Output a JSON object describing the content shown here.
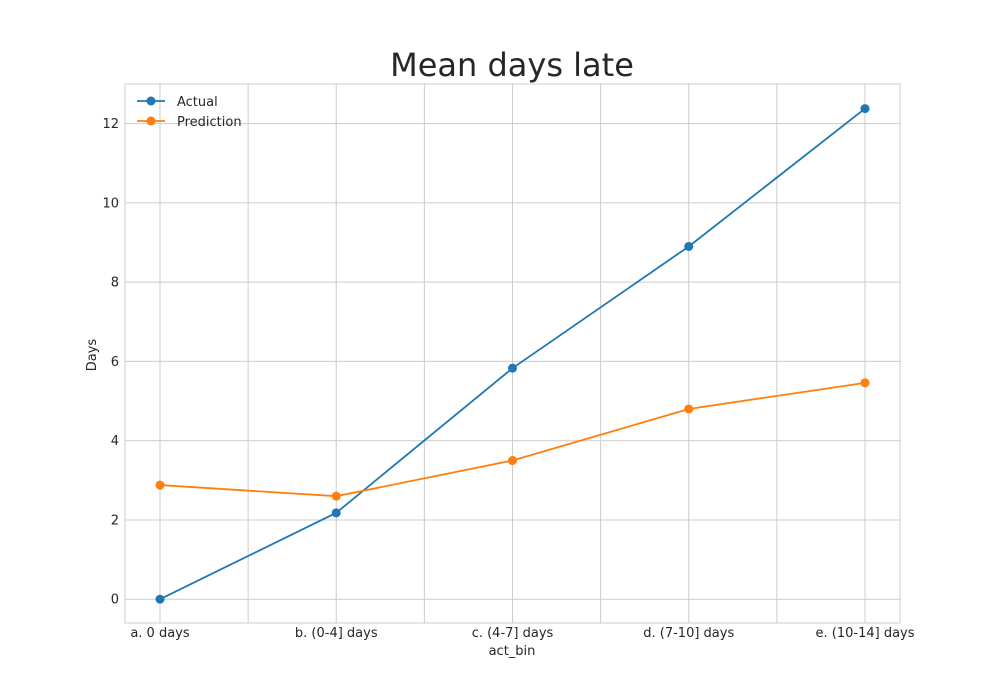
{
  "chart_data": {
    "type": "line",
    "title": "Mean days late",
    "xlabel": "act_bin",
    "ylabel": "Days",
    "categories": [
      "a. 0 days",
      "b. (0-4] days",
      "c. (4-7] days",
      "d. (7-10] days",
      "e. (10-14] days"
    ],
    "ylim": [
      -0.6,
      13
    ],
    "yticks": [
      0,
      2,
      4,
      6,
      8,
      10,
      12
    ],
    "grid": true,
    "legend_position": "top-left",
    "series": [
      {
        "name": "Actual",
        "color": "#1f77b4",
        "marker": "circle",
        "values": [
          0.0,
          2.18,
          5.83,
          8.9,
          12.38
        ]
      },
      {
        "name": "Prediction",
        "color": "#ff7f0e",
        "marker": "circle",
        "values": [
          2.88,
          2.6,
          3.5,
          4.8,
          5.46
        ]
      }
    ]
  }
}
